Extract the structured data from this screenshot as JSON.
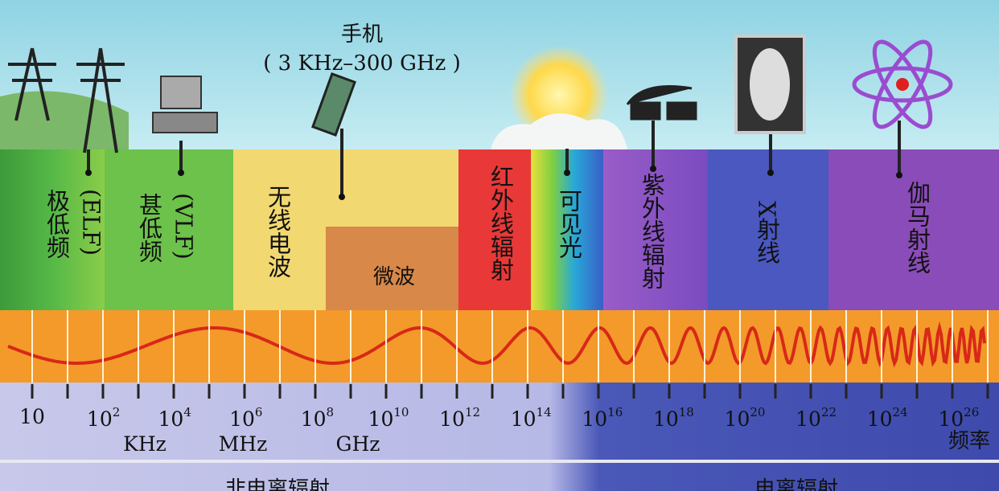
{
  "header": {
    "phone": "手机",
    "phone_range": "( 3 KHz–300 GHz )"
  },
  "bands": [
    {
      "label": "极低频",
      "sub": "(ELF)"
    },
    {
      "label": "甚低频",
      "sub": "(VLF)"
    },
    {
      "label": "无线电波"
    },
    {
      "label": "微波"
    },
    {
      "label": "红外线辐射"
    },
    {
      "label": "可见光"
    },
    {
      "label": "紫外线辐射"
    },
    {
      "label": "X射线"
    },
    {
      "label": "伽马射线"
    }
  ],
  "scale": [
    {
      "base": "10"
    },
    {
      "base": "10",
      "exp": "2"
    },
    {
      "base": "10",
      "exp": "4"
    },
    {
      "base": "10",
      "exp": "6"
    },
    {
      "base": "10",
      "exp": "8"
    },
    {
      "base": "10",
      "exp": "10"
    },
    {
      "base": "10",
      "exp": "12"
    },
    {
      "base": "10",
      "exp": "14"
    },
    {
      "base": "10",
      "exp": "16"
    },
    {
      "base": "10",
      "exp": "18"
    },
    {
      "base": "10",
      "exp": "20"
    },
    {
      "base": "10",
      "exp": "22"
    },
    {
      "base": "10",
      "exp": "24"
    },
    {
      "base": "10",
      "exp": "26"
    }
  ],
  "units": [
    "KHz",
    "MHz",
    "GHz"
  ],
  "axis_label": "频率",
  "regions": [
    "非电离辐射",
    "电离辐射"
  ]
}
